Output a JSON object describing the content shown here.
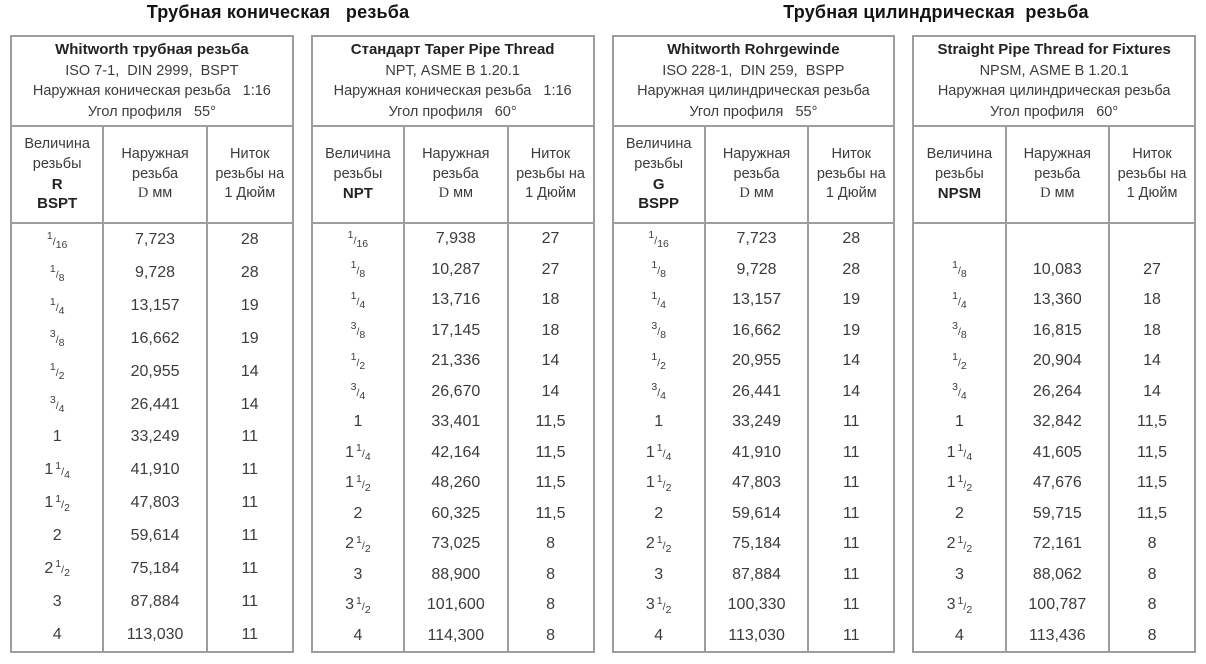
{
  "page": {
    "left_title": "Трубная коническая   резьба",
    "right_title": "Трубная цилиндрическая  резьба"
  },
  "tables": [
    {
      "header": {
        "title": "Whitworth трубная резьба",
        "line2": "ISO 7-1,  DIN 2999,  BSPT",
        "line3": "Наружная коническая резьба   1:16",
        "line4": "Угол профиля   55°"
      },
      "columns": {
        "size_label": "Величина резьбы",
        "designation": [
          "R",
          "BSPT"
        ],
        "diameter_label": "Наружная резьба",
        "diameter_unit": "D мм",
        "tpi_label": "Ниток резьбы на",
        "tpi_unit": "1 Дюйм"
      },
      "rows": [
        {
          "size": "1/16",
          "d": "7,723",
          "tpi": "28"
        },
        {
          "size": "1/8",
          "d": "9,728",
          "tpi": "28"
        },
        {
          "size": "1/4",
          "d": "13,157",
          "tpi": "19"
        },
        {
          "size": "3/8",
          "d": "16,662",
          "tpi": "19"
        },
        {
          "size": "1/2",
          "d": "20,955",
          "tpi": "14"
        },
        {
          "size": "3/4",
          "d": "26,441",
          "tpi": "14"
        },
        {
          "size": "1",
          "d": "33,249",
          "tpi": "11"
        },
        {
          "size": "1 1/4",
          "d": "41,910",
          "tpi": "11"
        },
        {
          "size": "1 1/2",
          "d": "47,803",
          "tpi": "11"
        },
        {
          "size": "2",
          "d": "59,614",
          "tpi": "11"
        },
        {
          "size": "2 1/2",
          "d": "75,184",
          "tpi": "11"
        },
        {
          "size": "3",
          "d": "87,884",
          "tpi": "11"
        },
        {
          "size": "4",
          "d": "113,030",
          "tpi": "11"
        }
      ]
    },
    {
      "header": {
        "title": "Стандарт Taper Pipe Thread",
        "line2": "NPT, ASME B 1.20.1",
        "line3": "Наружная коническая резьба   1:16",
        "line4": "Угол профиля   60°"
      },
      "columns": {
        "size_label": "Величина резьбы",
        "designation": [
          "NPT"
        ],
        "diameter_label": "Наружная резьба",
        "diameter_unit": "D мм",
        "tpi_label": "Ниток резьбы на",
        "tpi_unit": "1 Дюйм"
      },
      "rows": [
        {
          "size": "1/16",
          "d": "7,938",
          "tpi": "27"
        },
        {
          "size": "1/8",
          "d": "10,287",
          "tpi": "27"
        },
        {
          "size": "1/4",
          "d": "13,716",
          "tpi": "18"
        },
        {
          "size": "3/8",
          "d": "17,145",
          "tpi": "18"
        },
        {
          "size": "1/2",
          "d": "21,336",
          "tpi": "14"
        },
        {
          "size": "3/4",
          "d": "26,670",
          "tpi": "14"
        },
        {
          "size": "1",
          "d": "33,401",
          "tpi": "11,5"
        },
        {
          "size": "1 1/4",
          "d": "42,164",
          "tpi": "11,5"
        },
        {
          "size": "1 1/2",
          "d": "48,260",
          "tpi": "11,5"
        },
        {
          "size": "2",
          "d": "60,325",
          "tpi": "11,5"
        },
        {
          "size": "2 1/2",
          "d": "73,025",
          "tpi": "8"
        },
        {
          "size": "3",
          "d": "88,900",
          "tpi": "8"
        },
        {
          "size": "3 1/2",
          "d": "101,600",
          "tpi": "8"
        },
        {
          "size": "4",
          "d": "114,300",
          "tpi": "8"
        }
      ]
    },
    {
      "header": {
        "title": "Whitworth Rohrgewinde",
        "line2": "ISO 228-1,  DIN 259,  BSPP",
        "line3": "Наружная цилиндрическая резьба",
        "line4": "Угол профиля   55°"
      },
      "columns": {
        "size_label": "Величина резьбы",
        "designation": [
          "G",
          "BSPP"
        ],
        "diameter_label": "Наружная резьба",
        "diameter_unit": "D мм",
        "tpi_label": "Ниток резьбы на",
        "tpi_unit": "1 Дюйм"
      },
      "rows": [
        {
          "size": "1/16",
          "d": "7,723",
          "tpi": "28"
        },
        {
          "size": "1/8",
          "d": "9,728",
          "tpi": "28"
        },
        {
          "size": "1/4",
          "d": "13,157",
          "tpi": "19"
        },
        {
          "size": "3/8",
          "d": "16,662",
          "tpi": "19"
        },
        {
          "size": "1/2",
          "d": "20,955",
          "tpi": "14"
        },
        {
          "size": "3/4",
          "d": "26,441",
          "tpi": "14"
        },
        {
          "size": "1",
          "d": "33,249",
          "tpi": "11"
        },
        {
          "size": "1 1/4",
          "d": "41,910",
          "tpi": "11"
        },
        {
          "size": "1 1/2",
          "d": "47,803",
          "tpi": "11"
        },
        {
          "size": "2",
          "d": "59,614",
          "tpi": "11"
        },
        {
          "size": "2 1/2",
          "d": "75,184",
          "tpi": "11"
        },
        {
          "size": "3",
          "d": "87,884",
          "tpi": "11"
        },
        {
          "size": "3 1/2",
          "d": "100,330",
          "tpi": "11"
        },
        {
          "size": "4",
          "d": "113,030",
          "tpi": "11"
        }
      ]
    },
    {
      "header": {
        "title": "Straight Pipe Thread for Fixtures",
        "line2": "NPSM, ASME B 1.20.1",
        "line3": "Наружная цилиндрическая резьба",
        "line4": "Угол профиля   60°"
      },
      "columns": {
        "size_label": "Величина резьбы",
        "designation": [
          "NPSM"
        ],
        "diameter_label": "Наружная резьба",
        "diameter_unit": "D мм",
        "tpi_label": "Ниток резьбы на",
        "tpi_unit": "1 Дюйм"
      },
      "rows": [
        {
          "size": "",
          "d": "",
          "tpi": ""
        },
        {
          "size": "1/8",
          "d": "10,083",
          "tpi": "27"
        },
        {
          "size": "1/4",
          "d": "13,360",
          "tpi": "18"
        },
        {
          "size": "3/8",
          "d": "16,815",
          "tpi": "18"
        },
        {
          "size": "1/2",
          "d": "20,904",
          "tpi": "14"
        },
        {
          "size": "3/4",
          "d": "26,264",
          "tpi": "14"
        },
        {
          "size": "1",
          "d": "32,842",
          "tpi": "11,5"
        },
        {
          "size": "1 1/4",
          "d": "41,605",
          "tpi": "11,5"
        },
        {
          "size": "1 1/2",
          "d": "47,676",
          "tpi": "11,5"
        },
        {
          "size": "2",
          "d": "59,715",
          "tpi": "11,5"
        },
        {
          "size": "2 1/2",
          "d": "72,161",
          "tpi": "8"
        },
        {
          "size": "3",
          "d": "88,062",
          "tpi": "8"
        },
        {
          "size": "3 1/2",
          "d": "100,787",
          "tpi": "8"
        },
        {
          "size": "4",
          "d": "113,436",
          "tpi": "8"
        }
      ]
    }
  ],
  "colors": {
    "border": "#9e9e9e",
    "text": "#3c3c3c",
    "title_text": "#141414"
  }
}
